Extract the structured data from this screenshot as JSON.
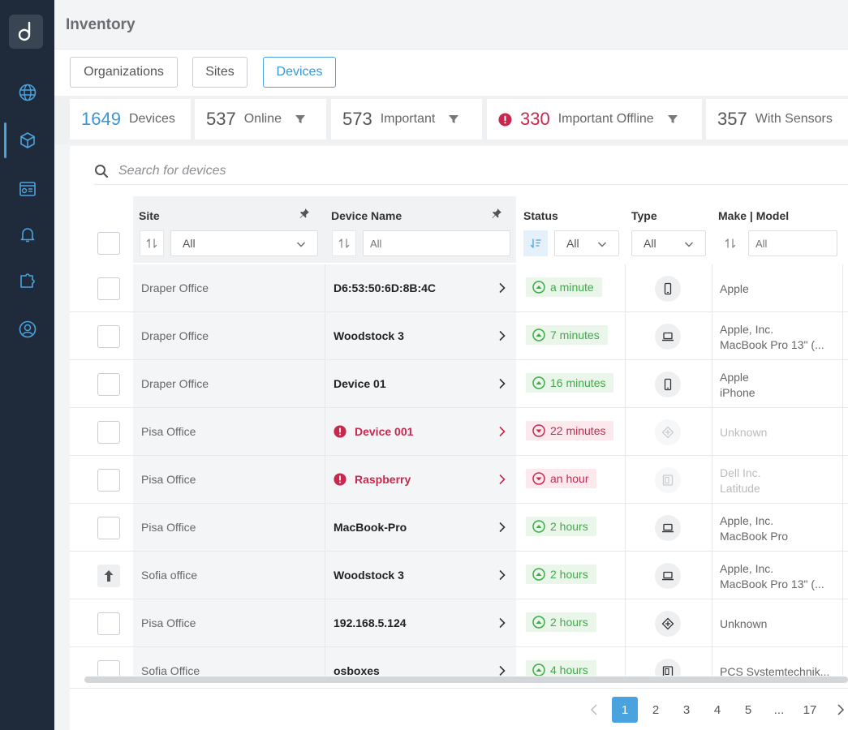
{
  "app": {
    "title": "Inventory"
  },
  "sidebar": {
    "items": [
      {
        "icon": "globe-icon"
      },
      {
        "icon": "cubes-icon",
        "active": true
      },
      {
        "icon": "dashboard-icon"
      },
      {
        "icon": "bell-icon"
      },
      {
        "icon": "puzzle-icon"
      },
      {
        "icon": "user-circle-icon"
      }
    ]
  },
  "tabs": [
    {
      "label": "Organizations"
    },
    {
      "label": "Sites"
    },
    {
      "label": "Devices",
      "active": true
    }
  ],
  "stats": [
    {
      "count": "1649",
      "label": "Devices"
    },
    {
      "count": "537",
      "label": "Online"
    },
    {
      "count": "573",
      "label": "Important"
    },
    {
      "count": "330",
      "label": "Important Offline"
    },
    {
      "count": "357",
      "label": "With Sensors"
    }
  ],
  "search": {
    "placeholder": "Search for devices"
  },
  "table": {
    "columns": {
      "site": "Site",
      "device_name": "Device Name",
      "status": "Status",
      "type": "Type",
      "make_model": "Make | Model"
    },
    "filters": {
      "site": "All",
      "device_name_placeholder": "All",
      "status": "All",
      "type": "All",
      "make_placeholder": "All"
    },
    "rows": [
      {
        "site": "Draper Office",
        "name": "D6:53:50:6D:8B:4C",
        "status": "a minute",
        "online": true,
        "type": "phone-icon",
        "make": "Apple",
        "model": ""
      },
      {
        "site": "Draper Office",
        "name": "Woodstock 3",
        "status": "7 minutes",
        "online": true,
        "type": "laptop-icon",
        "make": "Apple, Inc.",
        "model": "MacBook Pro 13\" (..."
      },
      {
        "site": "Draper Office",
        "name": "Device 01",
        "status": "16 minutes",
        "online": true,
        "type": "phone-icon",
        "make": "Apple",
        "model": "iPhone"
      },
      {
        "site": "Pisa Office",
        "name": "Device 001",
        "status": "22 minutes",
        "online": false,
        "type": "diamond-icon",
        "make": "Unknown",
        "model": ""
      },
      {
        "site": "Pisa Office",
        "name": "Raspberry",
        "status": "an hour",
        "online": false,
        "type": "tablet-icon",
        "make": "Dell Inc.",
        "model": "Latitude"
      },
      {
        "site": "Pisa Office",
        "name": "MacBook-Pro",
        "status": "2 hours",
        "online": true,
        "type": "laptop-icon",
        "make": "Apple, Inc.",
        "model": "MacBook Pro"
      },
      {
        "site": "Sofia office",
        "name": "Woodstock 3",
        "status": "2 hours",
        "online": true,
        "type": "laptop-icon",
        "make": "Apple, Inc.",
        "model": "MacBook Pro 13\" (...",
        "upload": true
      },
      {
        "site": "Pisa Office",
        "name": "192.168.5.124",
        "status": "2 hours",
        "online": true,
        "type": "diamond-icon",
        "make": "Unknown",
        "model": ""
      },
      {
        "site": "Sofia Office",
        "name": "osboxes",
        "status": "4 hours",
        "online": true,
        "type": "tablet-icon",
        "make": "PCS Systemtechnik...",
        "model": ""
      }
    ]
  },
  "pagination": {
    "pages": [
      "1",
      "2",
      "3",
      "4",
      "5",
      "...",
      "17"
    ],
    "current": "1"
  },
  "colors": {
    "accent": "#4aa3df",
    "online": "#3eaa48",
    "offline": "#c8284e",
    "sidebar": "#1f2b3a"
  }
}
